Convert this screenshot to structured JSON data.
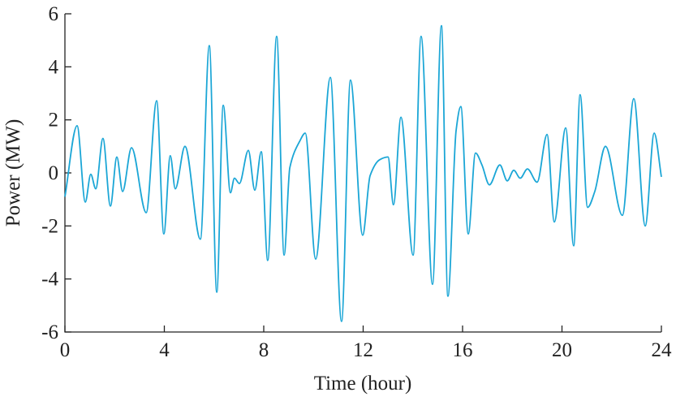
{
  "chart_data": {
    "type": "line",
    "xlabel": "Time (hour)",
    "ylabel": "Power (MW)",
    "xlim": [
      0,
      24
    ],
    "xticks": [
      0,
      4,
      8,
      12,
      16,
      20,
      24
    ],
    "ylim": [
      -6,
      6
    ],
    "yticks": [
      -6,
      -4,
      -2,
      0,
      2,
      4,
      6
    ],
    "x": [
      0,
      0.49,
      0.82,
      1.04,
      1.24,
      1.53,
      1.83,
      2.09,
      2.32,
      2.68,
      3.27,
      3.69,
      3.98,
      4.24,
      4.44,
      4.83,
      5.45,
      5.81,
      6.11,
      6.37,
      6.66,
      6.82,
      7.02,
      7.38,
      7.64,
      7.9,
      8.16,
      8.52,
      8.82,
      9.05,
      9.45,
      9.67,
      10.09,
      10.68,
      11.13,
      11.49,
      11.98,
      12.28,
      12.67,
      13.0,
      13.22,
      13.52,
      14.01,
      14.33,
      14.79,
      15.15,
      15.41,
      15.74,
      15.93,
      16.23,
      16.52,
      16.78,
      17.08,
      17.5,
      17.8,
      18.06,
      18.32,
      18.61,
      19.0,
      19.4,
      19.69,
      20.15,
      20.47,
      20.73,
      21.03,
      21.32,
      21.75,
      22.43,
      22.89,
      23.35,
      23.71,
      24
    ],
    "series": [
      {
        "color": "#1ba6d6",
        "values": [
          -0.9,
          1.78,
          -1.1,
          -0.05,
          -0.6,
          1.3,
          -1.25,
          0.6,
          -0.7,
          0.95,
          -1.5,
          2.72,
          -2.3,
          0.65,
          -0.6,
          1.0,
          -2.5,
          4.8,
          -4.5,
          2.55,
          -0.75,
          -0.2,
          -0.4,
          0.85,
          -0.65,
          0.8,
          -3.3,
          5.15,
          -3.1,
          0.2,
          1.2,
          1.5,
          -3.25,
          3.6,
          -5.6,
          3.5,
          -2.35,
          -0.1,
          0.5,
          0.6,
          -1.2,
          2.1,
          -3.1,
          5.15,
          -4.2,
          5.55,
          -4.65,
          1.6,
          2.5,
          -2.3,
          0.75,
          0.3,
          -0.45,
          0.3,
          -0.3,
          0.1,
          -0.2,
          0.15,
          -0.35,
          1.45,
          -1.85,
          1.7,
          -2.75,
          2.95,
          -1.3,
          -0.7,
          1.0,
          -1.6,
          2.8,
          -2.0,
          1.5,
          -0.15
        ]
      }
    ]
  }
}
